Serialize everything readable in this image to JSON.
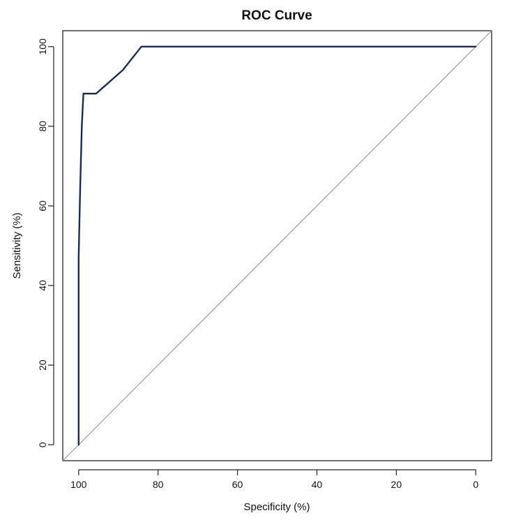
{
  "chart_data": {
    "type": "line",
    "title": "ROC Curve",
    "xlabel": "Specificity (%)",
    "ylabel": "Sensitivity (%)",
    "x_reversed": true,
    "xlim": [
      104,
      -4
    ],
    "ylim": [
      -4,
      104
    ],
    "xticks": [
      100,
      80,
      60,
      40,
      20,
      0
    ],
    "yticks": [
      0,
      20,
      40,
      60,
      80,
      100
    ],
    "grid": false,
    "legend": "none",
    "series": [
      {
        "color": "#1b2a5a",
        "x": [
          100,
          100,
          99.6,
          99.2,
          98.8,
          95.6,
          88.9,
          84.2,
          0
        ],
        "y": [
          0,
          47,
          65,
          80,
          88.2,
          88.2,
          94.1,
          100,
          100
        ]
      }
    ],
    "reference_line": {
      "color": "#9a9a9a",
      "x": [
        100,
        0
      ],
      "y": [
        0,
        100
      ]
    }
  }
}
